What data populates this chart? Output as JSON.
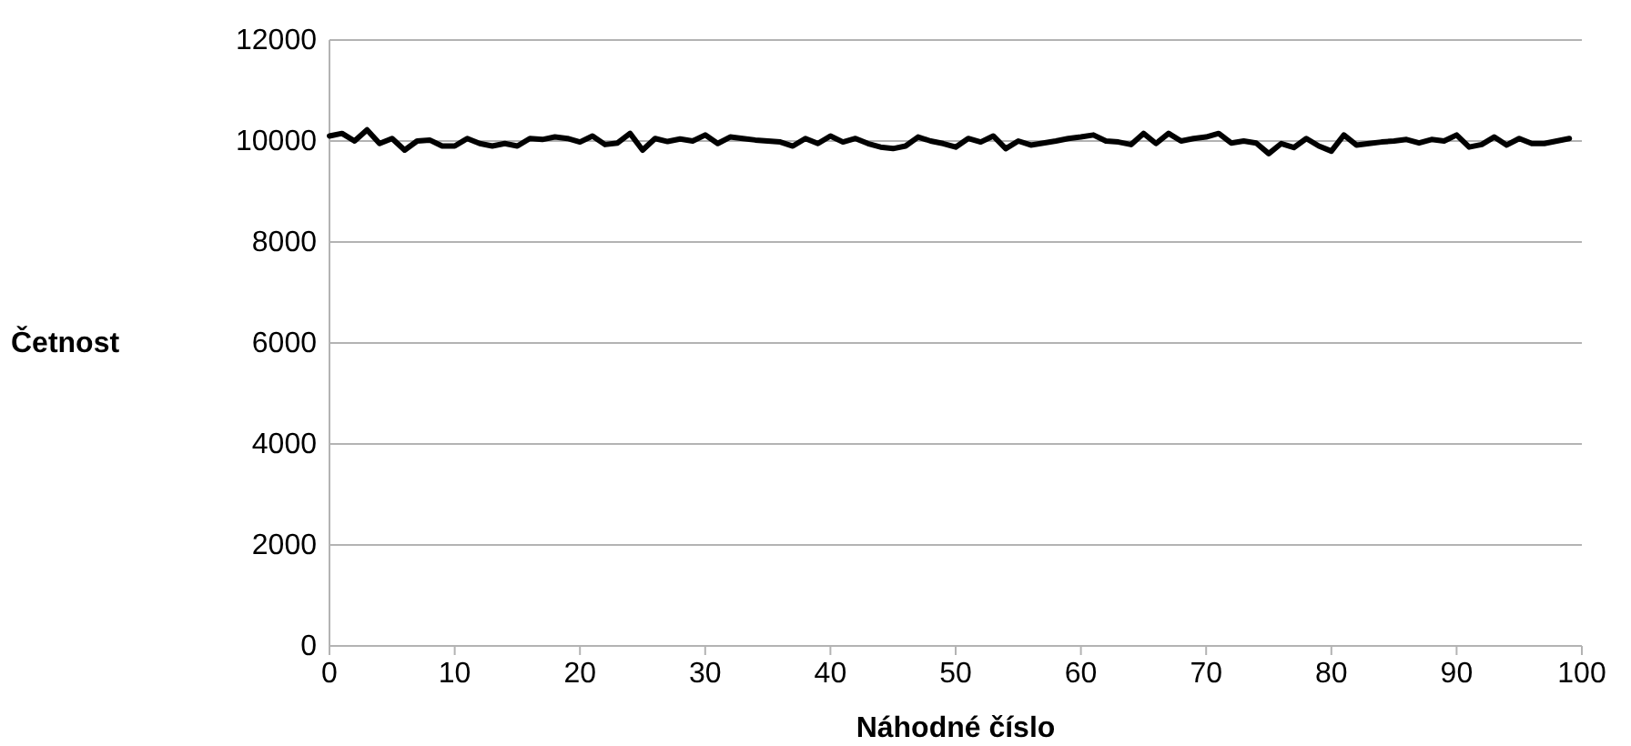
{
  "chart_data": {
    "type": "line",
    "xlabel": "Náhodné číslo",
    "ylabel": "Četnost",
    "x": [
      0,
      1,
      2,
      3,
      4,
      5,
      6,
      7,
      8,
      9,
      10,
      11,
      12,
      13,
      14,
      15,
      16,
      17,
      18,
      19,
      20,
      21,
      22,
      23,
      24,
      25,
      26,
      27,
      28,
      29,
      30,
      31,
      32,
      33,
      34,
      35,
      36,
      37,
      38,
      39,
      40,
      41,
      42,
      43,
      44,
      45,
      46,
      47,
      48,
      49,
      50,
      51,
      52,
      53,
      54,
      55,
      56,
      57,
      58,
      59,
      60,
      61,
      62,
      63,
      64,
      65,
      66,
      67,
      68,
      69,
      70,
      71,
      72,
      73,
      74,
      75,
      76,
      77,
      78,
      79,
      80,
      81,
      82,
      83,
      84,
      85,
      86,
      87,
      88,
      89,
      90,
      91,
      92,
      93,
      94,
      95,
      96,
      97,
      98,
      99
    ],
    "series": [
      {
        "color": "#000000",
        "values": [
          10100,
          10150,
          10000,
          10220,
          9950,
          10050,
          9820,
          10000,
          10020,
          9900,
          9900,
          10050,
          9950,
          9900,
          9950,
          9900,
          10050,
          10030,
          10080,
          10050,
          9980,
          10100,
          9930,
          9960,
          10150,
          9820,
          10050,
          9990,
          10040,
          10000,
          10120,
          9950,
          10080,
          10050,
          10020,
          10000,
          9980,
          9900,
          10050,
          9950,
          10100,
          9980,
          10050,
          9950,
          9880,
          9850,
          9900,
          10080,
          10000,
          9950,
          9880,
          10050,
          9980,
          10100,
          9850,
          10000,
          9920,
          9960,
          10000,
          10050,
          10080,
          10120,
          10000,
          9980,
          9930,
          10150,
          9950,
          10150,
          10000,
          10050,
          10080,
          10150,
          9960,
          10000,
          9960,
          9750,
          9950,
          9870,
          10050,
          9900,
          9800,
          10120,
          9920,
          9950,
          9980,
          10000,
          10030,
          9960,
          10030,
          10000,
          10120,
          9880,
          9930,
          10080,
          9920,
          10050,
          9950,
          9950,
          10000,
          10050
        ]
      }
    ],
    "xlim": [
      0,
      100
    ],
    "xticks": [
      0,
      10,
      20,
      30,
      40,
      50,
      60,
      70,
      80,
      90,
      100
    ],
    "ylim": [
      0,
      12000
    ],
    "yticks": [
      0,
      2000,
      4000,
      6000,
      8000,
      10000,
      12000
    ],
    "grid": "y",
    "marker": "none",
    "line_style": "solid"
  }
}
